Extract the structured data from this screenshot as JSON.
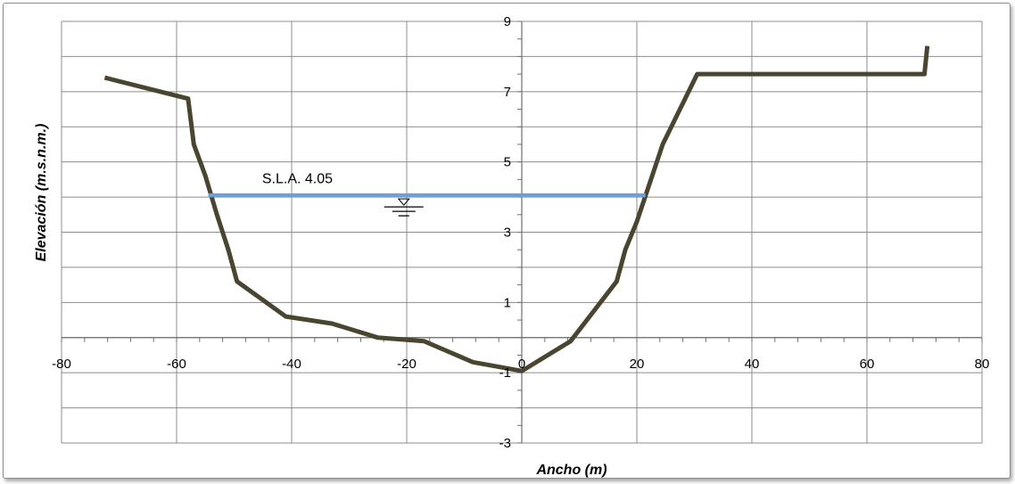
{
  "chart_data": {
    "type": "line",
    "xlabel": "Ancho (m)",
    "ylabel": "Elevación (m.s.n.m.)",
    "xlim": [
      -80,
      80
    ],
    "ylim": [
      -3,
      9
    ],
    "x_ticks": [
      -80,
      -60,
      -40,
      -20,
      0,
      20,
      40,
      60,
      80
    ],
    "x_tick_labels": [
      "-80",
      "-60",
      "-40",
      "-20",
      "0",
      "20",
      "40",
      "60",
      "80"
    ],
    "y_ticks": [
      -3,
      -1,
      1,
      3,
      5,
      7,
      9
    ],
    "y_tick_labels": [
      "-3",
      "-1",
      "1",
      "3",
      "5",
      "7",
      "9"
    ],
    "grid": true,
    "series": [
      {
        "color": "#4a4530",
        "points": [
          [
            -72.5,
            7.4
          ],
          [
            -58,
            6.8
          ],
          [
            -57,
            5.5
          ],
          [
            -55,
            4.6
          ],
          [
            -53,
            3.5
          ],
          [
            -51,
            2.5
          ],
          [
            -49.5,
            1.6
          ],
          [
            -41,
            0.6
          ],
          [
            -33,
            0.4
          ],
          [
            -25,
            0.0
          ],
          [
            -17,
            -0.1
          ],
          [
            -8.5,
            -0.7
          ],
          [
            0,
            -0.95
          ],
          [
            8.5,
            -0.1
          ],
          [
            16.5,
            1.6
          ],
          [
            18,
            2.5
          ],
          [
            20,
            3.3
          ],
          [
            24.5,
            5.5
          ],
          [
            30.5,
            7.5
          ],
          [
            70,
            7.5
          ],
          [
            70.5,
            8.3
          ]
        ]
      },
      {
        "color": "#6e9fd6",
        "points": [
          [
            -54.5,
            4.05
          ],
          [
            21.5,
            4.05
          ]
        ]
      }
    ],
    "annotations": [
      {
        "text": "S.L.A. 4.05",
        "x": -39,
        "y": 4.4
      }
    ]
  }
}
